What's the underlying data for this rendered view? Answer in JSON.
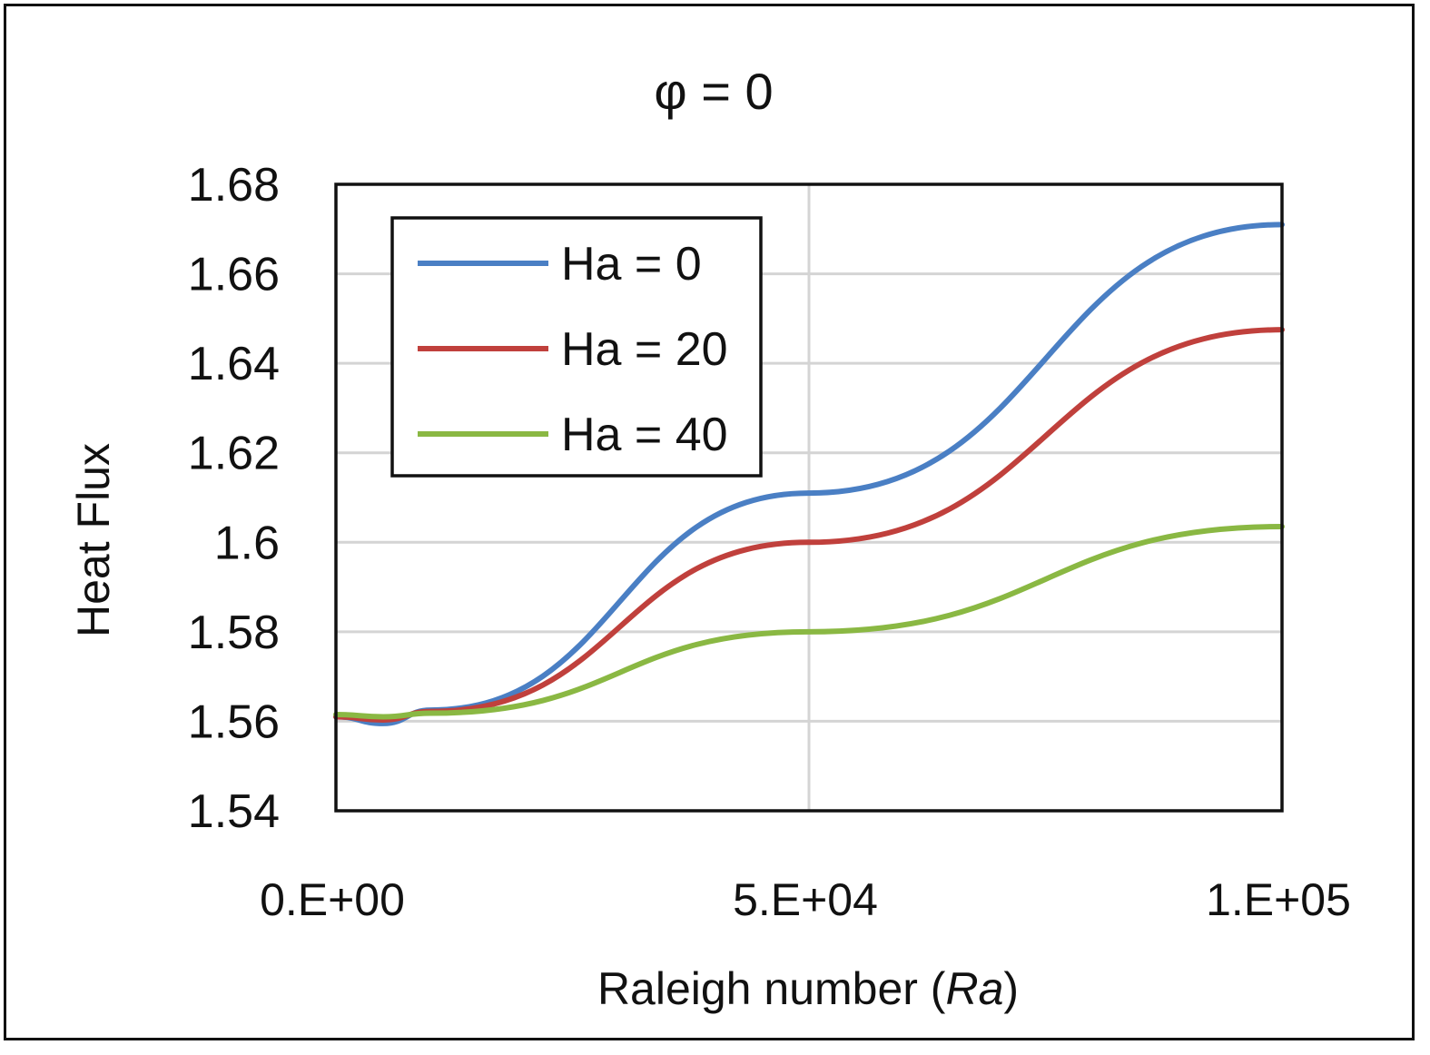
{
  "chart_data": {
    "type": "line",
    "title": "φ = 0",
    "xlabel": "Raleigh number (",
    "xlabel_italic": "Ra",
    "xlabel_close": ")",
    "ylabel": "Heat Flux",
    "xlim": [
      0,
      100000
    ],
    "ylim": [
      1.54,
      1.68
    ],
    "xticks": [
      0,
      50000,
      100000
    ],
    "xtick_labels": [
      "0.E+00",
      "5.E+04",
      "1.E+05"
    ],
    "yticks": [
      1.54,
      1.56,
      1.58,
      1.6,
      1.62,
      1.64,
      1.66,
      1.68
    ],
    "ytick_labels": [
      "1.54",
      "1.56",
      "1.58",
      "1.6",
      "1.62",
      "1.64",
      "1.66",
      "1.68"
    ],
    "grid": true,
    "legend_position": "top-left",
    "x": [
      0,
      5000,
      10000,
      50000,
      100000
    ],
    "series": [
      {
        "name": "Ha = 0",
        "color": "#4a7fc4",
        "values": [
          1.561,
          1.5595,
          1.5625,
          1.611,
          1.671
        ]
      },
      {
        "name": "Ha = 20",
        "color": "#c0403c",
        "values": [
          1.561,
          1.5603,
          1.5622,
          1.6,
          1.6475
        ]
      },
      {
        "name": "Ha = 40",
        "color": "#8ab843",
        "values": [
          1.5615,
          1.561,
          1.5618,
          1.58,
          1.6035
        ]
      }
    ]
  }
}
